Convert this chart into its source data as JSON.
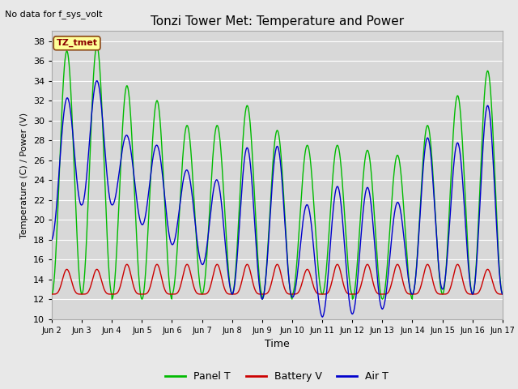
{
  "title": "Tonzi Tower Met: Temperature and Power",
  "topleft_text": "No data for f_sys_volt",
  "annotation_text": "TZ_tmet",
  "xlabel": "Time",
  "ylabel": "Temperature (C) / Power (V)",
  "ylim": [
    10,
    39
  ],
  "yticks": [
    10,
    12,
    14,
    16,
    18,
    20,
    22,
    24,
    26,
    28,
    30,
    32,
    34,
    36,
    38
  ],
  "xtick_labels": [
    "Jun 2",
    "Jun 3",
    "Jun 4",
    "Jun 5",
    "Jun 6",
    "Jun 7",
    "Jun 8",
    "Jun 9",
    "Jun 10",
    "Jun 11",
    "Jun 12",
    "Jun 13",
    "Jun 14",
    "Jun 15",
    "Jun 16",
    "Jun 17"
  ],
  "background_color": "#e8e8e8",
  "plot_bg_color": "#d8d8d8",
  "grid_color": "#ffffff",
  "panel_T_color": "#00bb00",
  "battery_V_color": "#cc0000",
  "air_T_color": "#0000cc",
  "legend_labels": [
    "Panel T",
    "Battery V",
    "Air T"
  ],
  "panel_peaks": [
    37.0,
    37.5,
    33.5,
    32.0,
    29.5,
    29.5,
    31.5,
    29.0,
    27.5,
    27.5,
    27.0,
    26.5,
    29.5,
    32.5,
    35.0
  ],
  "air_peaks": [
    34.0,
    34.0,
    29.5,
    28.5,
    26.0,
    25.5,
    27.5,
    27.5,
    22.5,
    23.5,
    23.5,
    22.5,
    28.5,
    28.0,
    31.5
  ],
  "batt_peaks": [
    15.0,
    15.0,
    15.5,
    15.5,
    15.5,
    15.5,
    15.5,
    15.5,
    15.0,
    15.5,
    15.5,
    15.5,
    15.5,
    15.5,
    15.0
  ],
  "panel_nights": [
    12.5,
    12.5,
    12.0,
    12.0,
    12.5,
    12.5,
    12.5,
    12.0,
    12.5,
    12.5,
    12.0,
    12.0,
    12.5,
    12.5,
    12.5
  ],
  "air_nights": [
    18.0,
    21.5,
    21.5,
    19.5,
    17.5,
    15.5,
    12.5,
    12.0,
    12.2,
    10.2,
    10.5,
    11.0,
    12.5,
    13.0,
    12.5
  ],
  "batt_nights": [
    12.5,
    12.5,
    12.5,
    12.5,
    12.5,
    12.5,
    12.5,
    12.5,
    12.5,
    12.5,
    12.5,
    12.5,
    12.5,
    12.5,
    12.5
  ]
}
